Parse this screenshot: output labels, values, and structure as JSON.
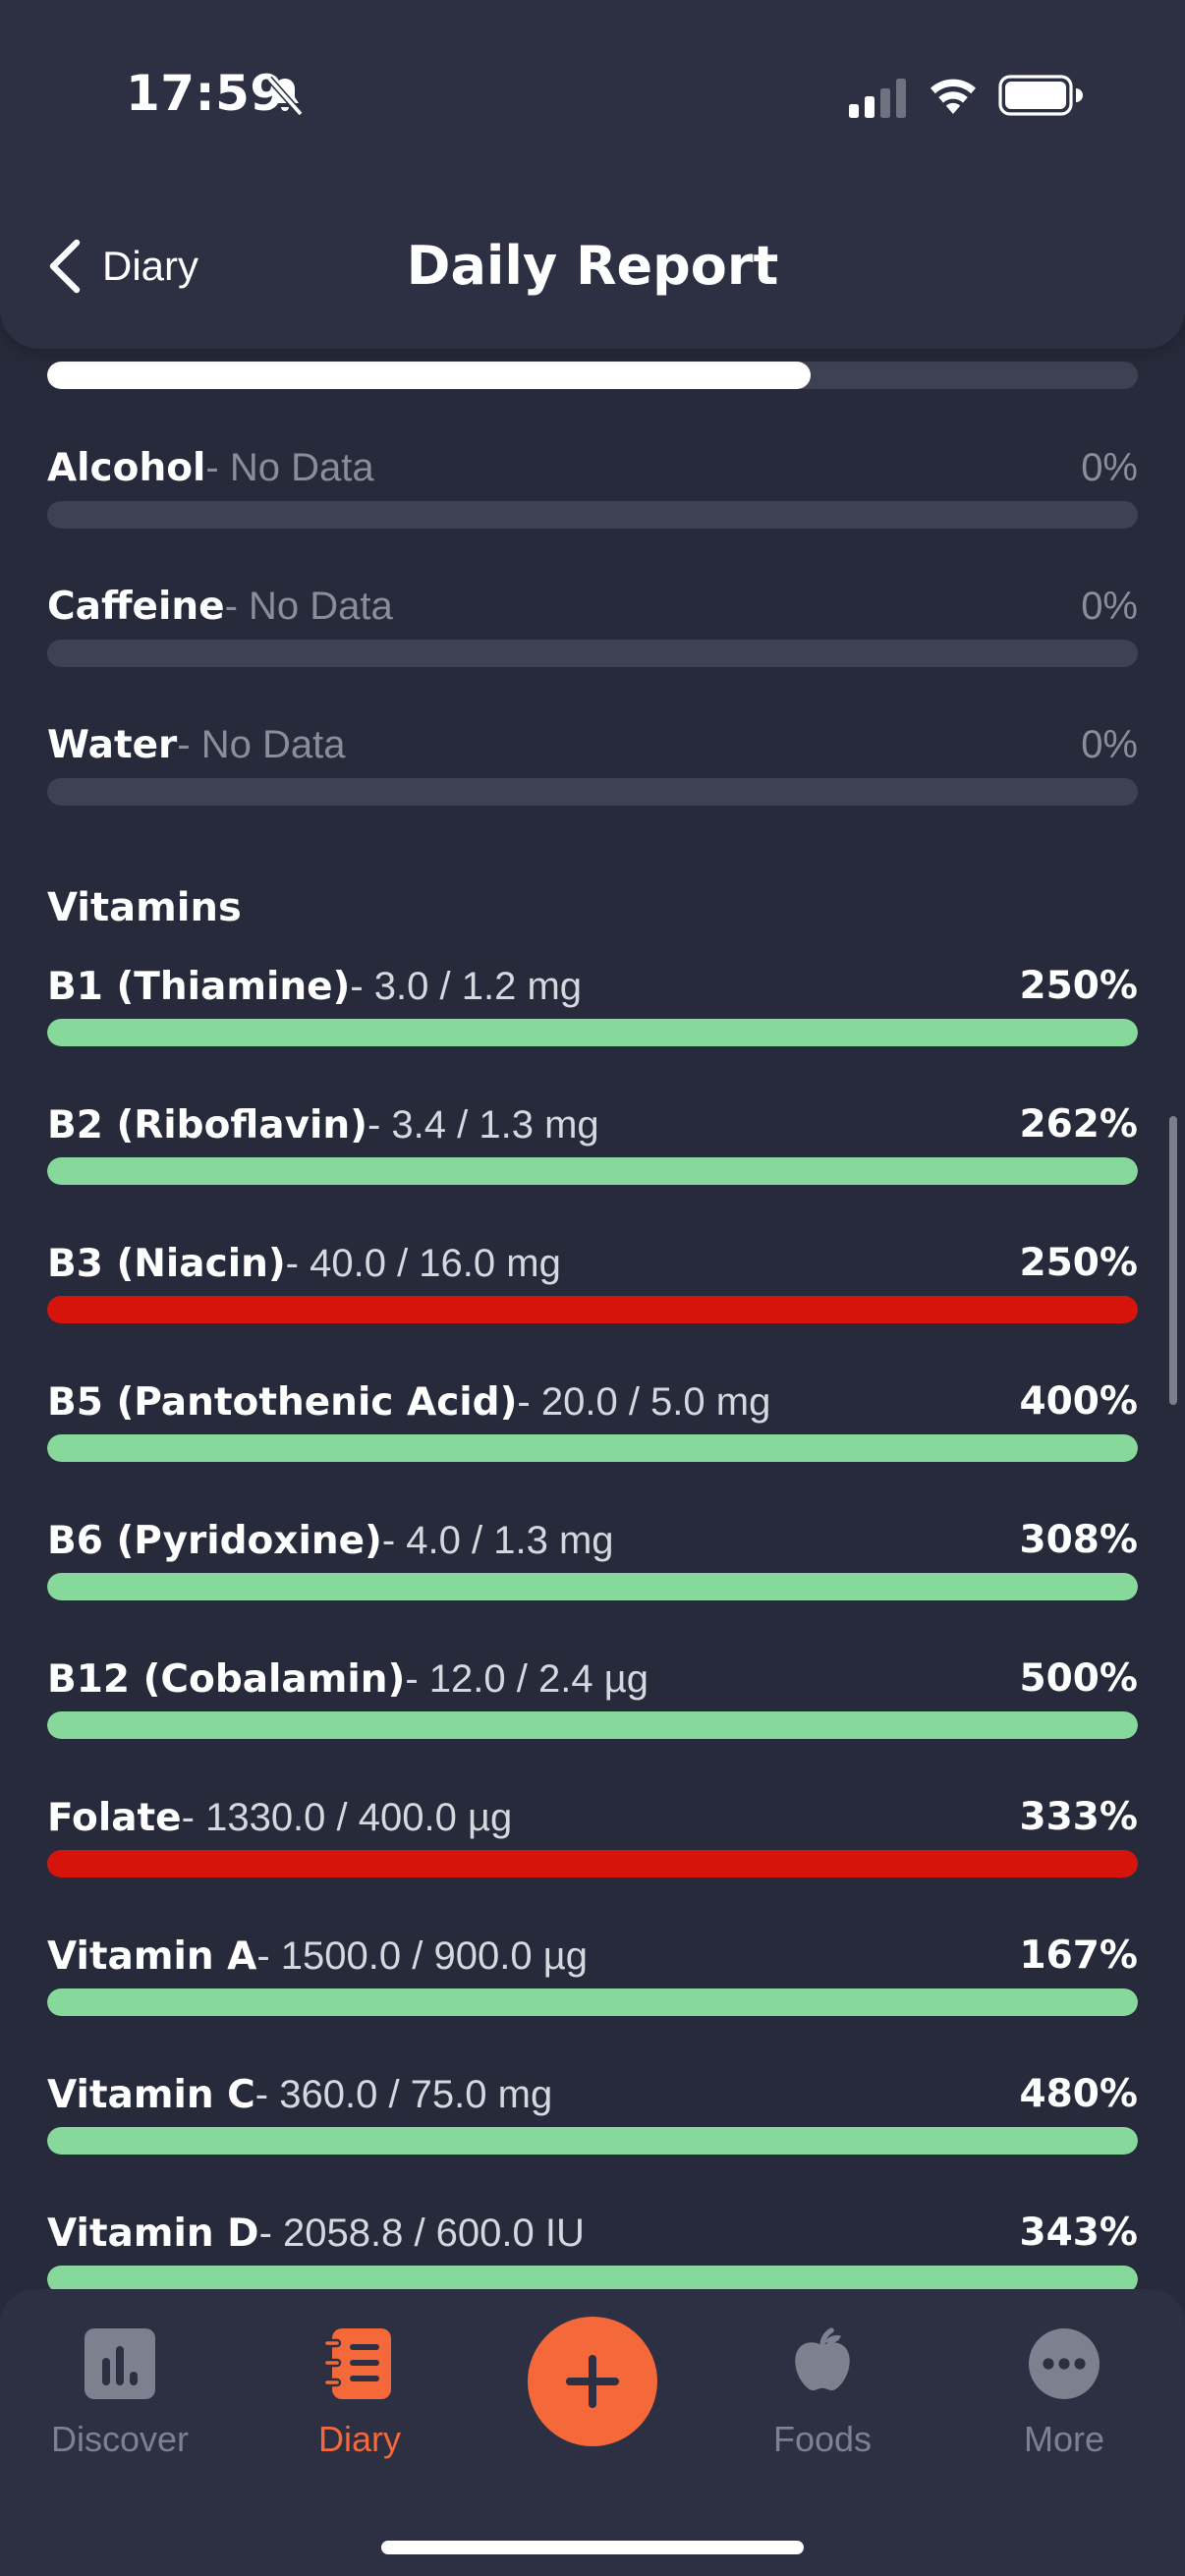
{
  "status_bar": {
    "time": "17:59"
  },
  "header": {
    "back_label": "Diary",
    "title": "Daily Report"
  },
  "top_rows": [
    {
      "name": "Alcohol",
      "detail": "- No Data",
      "percent": "0%"
    },
    {
      "name": "Caffeine",
      "detail": "- No Data",
      "percent": "0%"
    },
    {
      "name": "Water",
      "detail": "- No Data",
      "percent": "0%"
    }
  ],
  "partial_bar_fill": 0.7,
  "vitamins": {
    "title": "Vitamins",
    "rows": [
      {
        "name": "B1 (Thiamine)",
        "detail": "- 3.0 / 1.2 mg",
        "percent": "250%",
        "status": "good"
      },
      {
        "name": "B2 (Riboflavin)",
        "detail": "- 3.4 / 1.3 mg",
        "percent": "262%",
        "status": "good"
      },
      {
        "name": "B3 (Niacin)",
        "detail": "- 40.0 / 16.0 mg",
        "percent": "250%",
        "status": "over"
      },
      {
        "name": "B5 (Pantothenic Acid)",
        "detail": "- 20.0 / 5.0 mg",
        "percent": "400%",
        "status": "good"
      },
      {
        "name": "B6 (Pyridoxine)",
        "detail": "- 4.0 / 1.3 mg",
        "percent": "308%",
        "status": "good"
      },
      {
        "name": "B12 (Cobalamin)",
        "detail": "- 12.0 / 2.4 µg",
        "percent": "500%",
        "status": "good"
      },
      {
        "name": "Folate",
        "detail": "- 1330.0 / 400.0 µg",
        "percent": "333%",
        "status": "over"
      },
      {
        "name": "Vitamin A",
        "detail": "- 1500.0 / 900.0 µg",
        "percent": "167%",
        "status": "good"
      },
      {
        "name": "Vitamin C",
        "detail": "- 360.0 / 75.0 mg",
        "percent": "480%",
        "status": "good"
      },
      {
        "name": "Vitamin D",
        "detail": "- 2058.8 / 600.0 IU",
        "percent": "343%",
        "status": "good"
      }
    ]
  },
  "colors": {
    "good": "#86d99a",
    "over": "#d6140c",
    "partial": "#ffffff",
    "accent": "#f5683a"
  },
  "tabbar": {
    "tabs": [
      {
        "label": "Discover",
        "icon": "chart-icon"
      },
      {
        "label": "Diary",
        "icon": "diary-icon",
        "active": true
      },
      {
        "label": "Foods",
        "icon": "apple-icon"
      },
      {
        "label": "More",
        "icon": "more-icon"
      }
    ],
    "add_icon": "plus-icon"
  }
}
